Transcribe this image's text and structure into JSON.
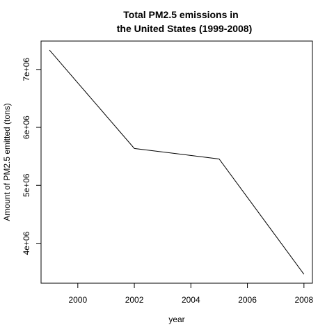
{
  "chart_data": {
    "type": "line",
    "title_lines": [
      "Total PM2.5 emissions in",
      "the United States (1999-2008)"
    ],
    "xlabel": "year",
    "ylabel": "Amount of PM2.5 emitted (tons)",
    "x": [
      1999,
      2002,
      2005,
      2008
    ],
    "y": [
      7332967,
      5635780,
      5454703,
      3464206
    ],
    "xlim": [
      1998.7,
      2008.3
    ],
    "ylim": [
      3310000,
      7490000
    ],
    "x_ticks": [
      2000,
      2002,
      2004,
      2006,
      2008
    ],
    "x_tick_labels": [
      "2000",
      "2002",
      "2004",
      "2006",
      "2008"
    ],
    "y_ticks": [
      4000000,
      5000000,
      6000000,
      7000000
    ],
    "y_tick_labels": [
      "4e+06",
      "5e+06",
      "6e+06",
      "7e+06"
    ],
    "line_color": "#000000",
    "grid": false,
    "legend": "none"
  }
}
